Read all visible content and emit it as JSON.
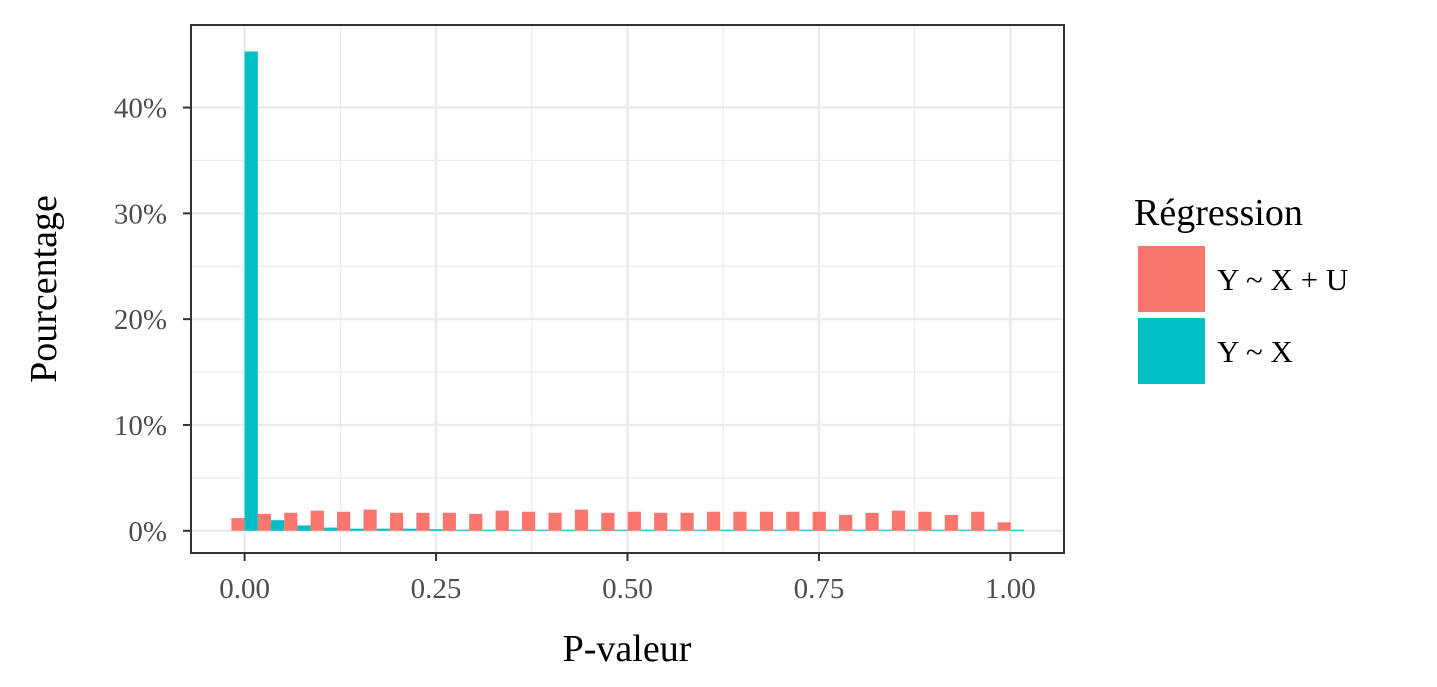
{
  "chart_data": {
    "type": "bar",
    "xlabel": "P-valeur",
    "ylabel": "Pourcentage",
    "x_ticks": [
      "0.00",
      "0.25",
      "0.50",
      "0.75",
      "1.00"
    ],
    "y_ticks": [
      "0%",
      "10%",
      "20%",
      "30%",
      "40%"
    ],
    "xlim": [
      -0.07,
      1.07
    ],
    "ylim": [
      -2.1,
      47.8
    ],
    "grid": true,
    "legend": {
      "title": "Régression",
      "position": "right"
    },
    "bin_width": 0.0345,
    "bin_centers": [
      0.0,
      0.0345,
      0.069,
      0.1035,
      0.138,
      0.1725,
      0.207,
      0.2415,
      0.276,
      0.3105,
      0.345,
      0.3795,
      0.414,
      0.4485,
      0.483,
      0.5175,
      0.552,
      0.5865,
      0.621,
      0.6555,
      0.69,
      0.7245,
      0.759,
      0.7935,
      0.828,
      0.8625,
      0.897,
      0.9315,
      0.966,
      1.0005
    ],
    "series": [
      {
        "name": "Y ~ X + U",
        "color": "#F8766D",
        "values": [
          1.2,
          1.6,
          1.7,
          1.9,
          1.8,
          2.0,
          1.7,
          1.7,
          1.7,
          1.6,
          1.9,
          1.8,
          1.7,
          2.0,
          1.7,
          1.8,
          1.7,
          1.7,
          1.8,
          1.8,
          1.8,
          1.8,
          1.8,
          1.5,
          1.7,
          1.9,
          1.8,
          1.5,
          1.8,
          0.8
        ]
      },
      {
        "name": "Y ~ X",
        "color": "#00BFC4",
        "values": [
          45.3,
          1.0,
          0.5,
          0.3,
          0.2,
          0.2,
          0.2,
          0.15,
          0.1,
          0.1,
          0.1,
          0.1,
          0.1,
          0.1,
          0.1,
          0.1,
          0.1,
          0.1,
          0.1,
          0.1,
          0.1,
          0.1,
          0.1,
          0.1,
          0.1,
          0.1,
          0.1,
          0.1,
          0.1,
          0.1
        ]
      }
    ]
  }
}
